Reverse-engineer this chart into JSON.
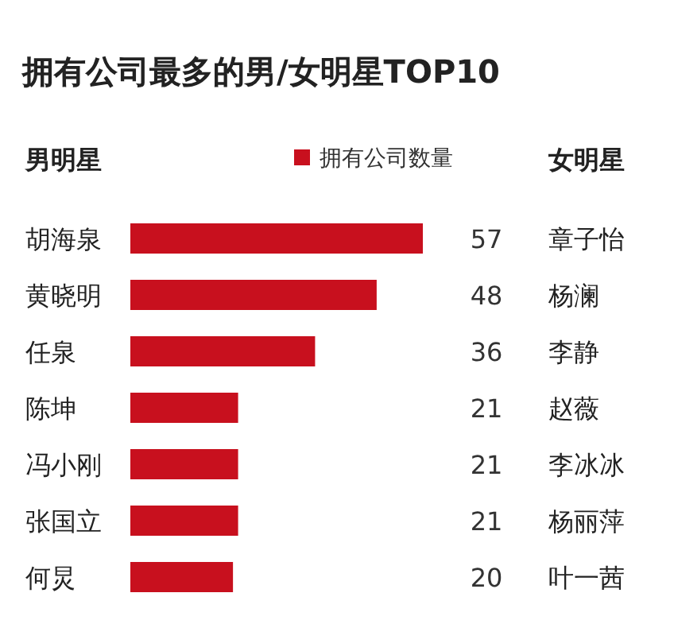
{
  "chart_data": {
    "type": "bar",
    "orientation": "horizontal",
    "title": "拥有公司最多的男/女明星TOP10",
    "ylabel": "男明星",
    "categories": [
      "胡海泉",
      "黄晓明",
      "任泉",
      "陈坤",
      "冯小刚",
      "张国立",
      "何炅"
    ],
    "series": [
      {
        "name": "拥有公司数量",
        "color": "#c8101e",
        "values": [
          57,
          48,
          36,
          21,
          21,
          21,
          20
        ]
      }
    ],
    "data_labels": true,
    "legend": "top",
    "annotations": [
      "女明星",
      "章子怡",
      "杨澜",
      "李静",
      "赵薇",
      "李冰冰",
      "杨丽萍",
      "叶一茜"
    ]
  }
}
